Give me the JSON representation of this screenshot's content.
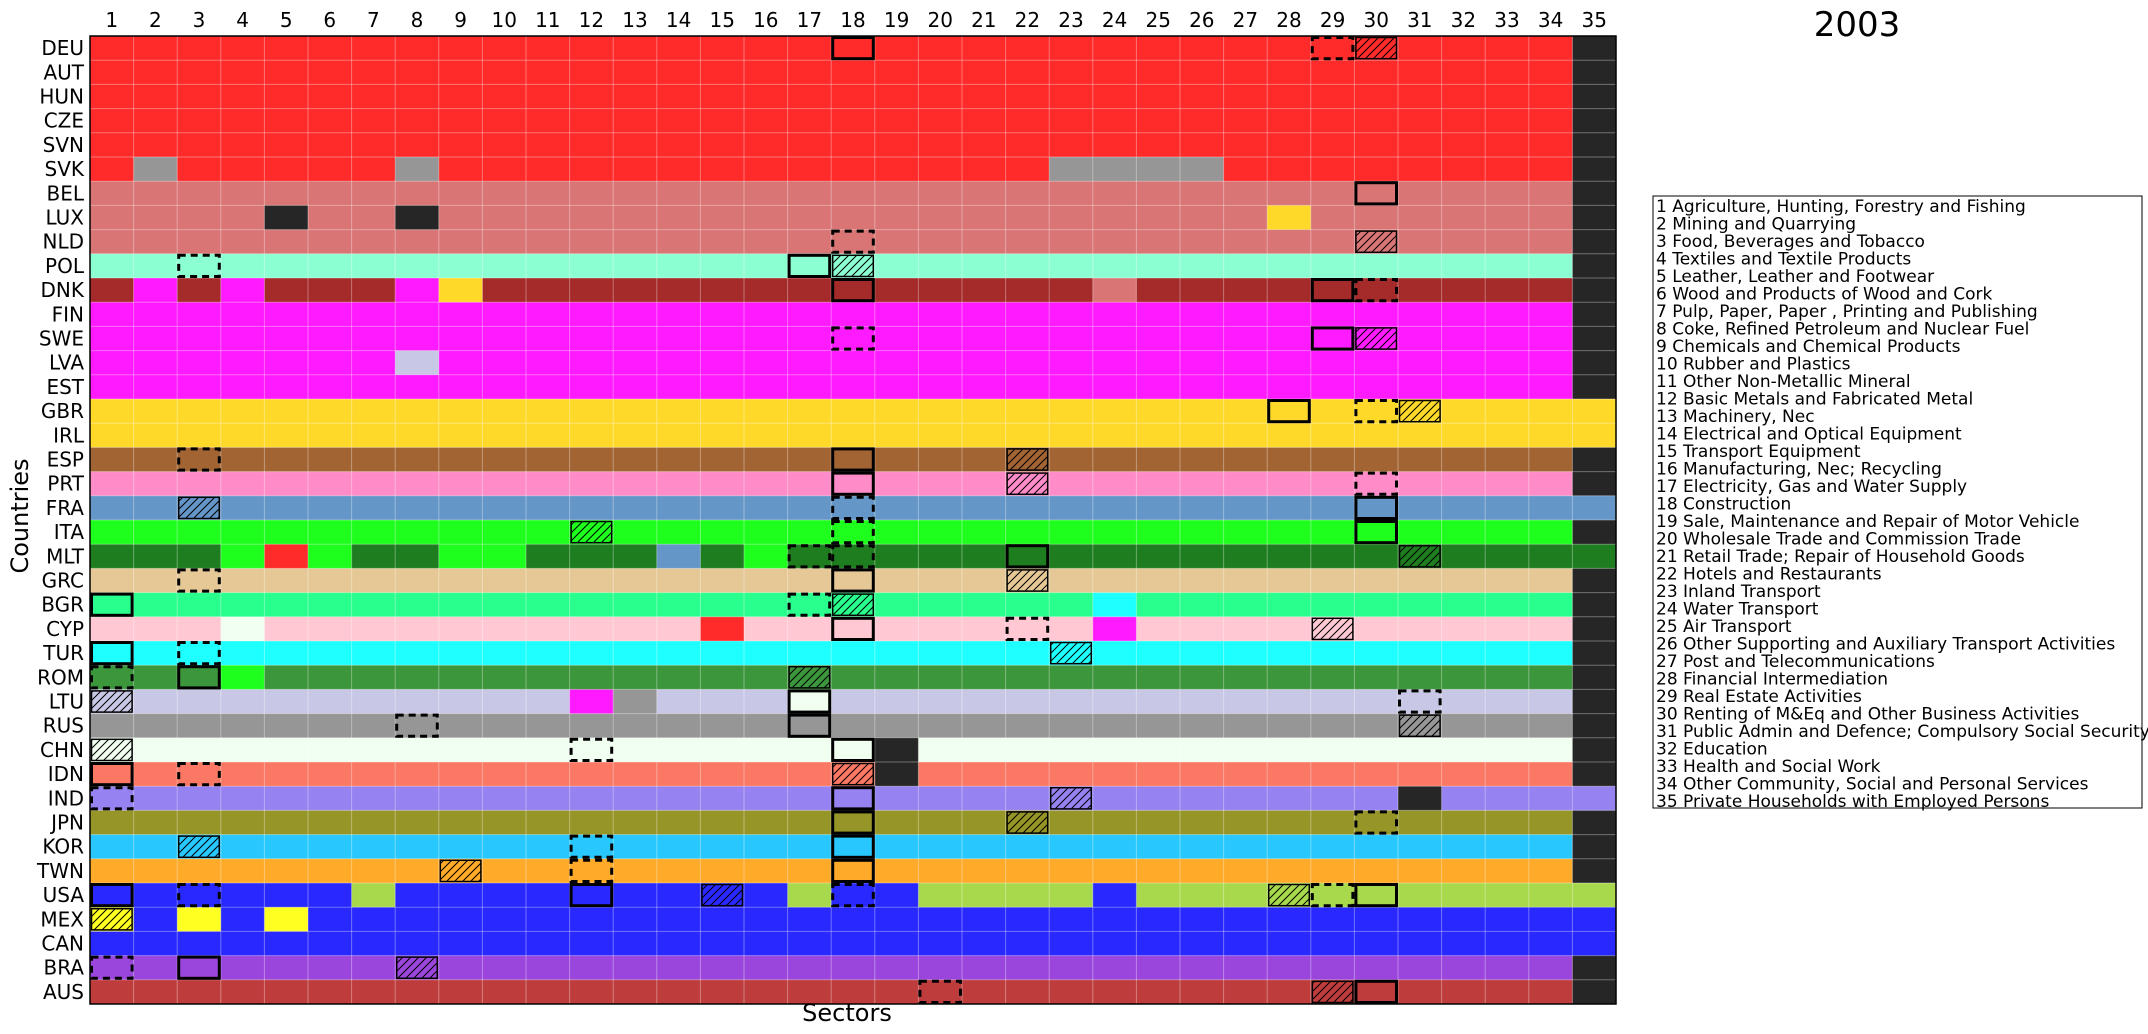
{
  "chart_data": {
    "type": "heatmap",
    "title": "2003",
    "xlabel": "Sectors",
    "ylabel": "Countries",
    "grid": true,
    "legend_position": "right",
    "x_categories": [
      "1",
      "2",
      "3",
      "4",
      "5",
      "6",
      "7",
      "8",
      "9",
      "10",
      "11",
      "12",
      "13",
      "14",
      "15",
      "16",
      "17",
      "18",
      "19",
      "20",
      "21",
      "22",
      "23",
      "24",
      "25",
      "26",
      "27",
      "28",
      "29",
      "30",
      "31",
      "32",
      "33",
      "34",
      "35"
    ],
    "countries": [
      "DEU",
      "AUT",
      "HUN",
      "CZE",
      "SVN",
      "SVK",
      "BEL",
      "LUX",
      "NLD",
      "POL",
      "DNK",
      "FIN",
      "SWE",
      "LVA",
      "EST",
      "GBR",
      "IRL",
      "ESP",
      "PRT",
      "FRA",
      "ITA",
      "MLT",
      "GRC",
      "BGR",
      "CYP",
      "TUR",
      "ROM",
      "LTU",
      "RUS",
      "CHN",
      "IDN",
      "IND",
      "JPN",
      "KOR",
      "TWN",
      "USA",
      "MEX",
      "CAN",
      "BRA",
      "AUS"
    ],
    "country_colors": {
      "DEU": "#ff2a2a",
      "AUT": "#ff2a2a",
      "HUN": "#ff2a2a",
      "CZE": "#ff2a2a",
      "SVN": "#ff2a2a",
      "SVK": "#ff2a2a",
      "BEL": "#d97575",
      "LUX": "#d97575",
      "NLD": "#d97575",
      "POL": "#8cffd2",
      "DNK": "#a52a2a",
      "FIN": "#ff1aff",
      "SWE": "#ff1aff",
      "LVA": "#ff1aff",
      "EST": "#ff1aff",
      "GBR": "#ffd92a",
      "IRL": "#ffd92a",
      "ESP": "#a26432",
      "PRT": "#ff8cc8",
      "FRA": "#6496c8",
      "ITA": "#1eff1e",
      "MLT": "#1e7d1e",
      "GRC": "#e6c896",
      "BGR": "#28ff8c",
      "CYP": "#ffc8d2",
      "TUR": "#1effff",
      "ROM": "#3c963c",
      "LTU": "#c8c8e6",
      "RUS": "#969696",
      "CHN": "#f0fff0",
      "IDN": "#fa7864",
      "IND": "#9682f0",
      "JPN": "#969628",
      "KOR": "#28c8ff",
      "TWN": "#ffaa28",
      "USA": "#2828ff",
      "MEX": "#2828ff",
      "CAN": "#2828ff",
      "BRA": "#9a46dc",
      "AUS": "#be3c3c"
    },
    "last_column_dark": [
      "DEU",
      "AUT",
      "HUN",
      "CZE",
      "SVN",
      "SVK",
      "BEL",
      "LUX",
      "NLD",
      "POL",
      "DNK",
      "FIN",
      "SWE",
      "LVA",
      "EST",
      "ESP",
      "PRT",
      "ITA",
      "GRC",
      "BGR",
      "CYP",
      "TUR",
      "ROM",
      "LTU",
      "RUS",
      "CHN",
      "IDN",
      "JPN",
      "KOR",
      "TWN",
      "BRA",
      "AUS"
    ],
    "cell_overrides": [
      {
        "country": "SVK",
        "sectors": [
          2,
          8,
          23,
          24,
          25,
          26
        ],
        "color": "RUS"
      },
      {
        "country": "LUX",
        "sectors": [
          5,
          8
        ],
        "color": "dark"
      },
      {
        "country": "LUX",
        "sectors": [
          28
        ],
        "color": "GBR"
      },
      {
        "country": "DNK",
        "sectors": [
          2,
          4,
          8
        ],
        "color": "FIN"
      },
      {
        "country": "DNK",
        "sectors": [
          9
        ],
        "color": "GBR"
      },
      {
        "country": "DNK",
        "sectors": [
          24
        ],
        "color": "BEL"
      },
      {
        "country": "LVA",
        "sectors": [
          8
        ],
        "color": "LTU"
      },
      {
        "country": "FRA",
        "sectors": [
          35
        ],
        "color": "FRA"
      },
      {
        "country": "ITA",
        "sectors": [
          30
        ],
        "color": "ITA"
      },
      {
        "country": "MLT",
        "sectors": [
          4,
          6,
          9,
          10,
          16
        ],
        "color": "ITA"
      },
      {
        "country": "MLT",
        "sectors": [
          5
        ],
        "color": "DEU"
      },
      {
        "country": "MLT",
        "sectors": [
          14
        ],
        "color": "FRA"
      },
      {
        "country": "MLT",
        "sectors": [
          35
        ],
        "color": "MLT"
      },
      {
        "country": "GBR",
        "sectors": [
          35
        ],
        "color": "GBR"
      },
      {
        "country": "IRL",
        "sectors": [
          35
        ],
        "color": "IRL"
      },
      {
        "country": "BGR",
        "sectors": [
          24
        ],
        "color": "TUR"
      },
      {
        "country": "CYP",
        "sectors": [
          4
        ],
        "color": "CHN"
      },
      {
        "country": "CYP",
        "sectors": [
          15
        ],
        "color": "DEU"
      },
      {
        "country": "CYP",
        "sectors": [
          24
        ],
        "color": "FIN"
      },
      {
        "country": "ROM",
        "sectors": [
          4
        ],
        "color": "ITA"
      },
      {
        "country": "LTU",
        "sectors": [
          12
        ],
        "color": "FIN"
      },
      {
        "country": "LTU",
        "sectors": [
          13
        ],
        "color": "RUS"
      },
      {
        "country": "LTU",
        "sectors": [
          17
        ],
        "color": "CHN"
      },
      {
        "country": "CHN",
        "sectors": [
          19
        ],
        "color": "dark"
      },
      {
        "country": "IDN",
        "sectors": [
          18
        ],
        "color": "IDN"
      },
      {
        "country": "IDN",
        "sectors": [
          19
        ],
        "color": "dark"
      },
      {
        "country": "IND",
        "sectors": [
          31
        ],
        "color": "dark"
      },
      {
        "country": "IND",
        "sectors": [
          35
        ],
        "color": "IND"
      },
      {
        "country": "USA",
        "sectors": [
          7,
          17,
          20,
          21,
          22,
          23,
          25,
          26,
          27,
          28,
          29,
          30,
          31,
          32,
          33,
          34,
          35
        ],
        "color": "lime"
      },
      {
        "country": "MEX",
        "sectors": [
          1,
          3,
          5
        ],
        "color": "yellow"
      },
      {
        "country": "MEX",
        "sectors": [
          35
        ],
        "color": "MEX"
      },
      {
        "country": "CAN",
        "sectors": [
          35
        ],
        "color": "CAN"
      }
    ],
    "extra_colors": {
      "dark": "#262626",
      "lime": "#a8d94c",
      "yellow": "#ffff22"
    },
    "highlight_boxes": [
      {
        "country": "DEU",
        "sector": 18,
        "style": "solid"
      },
      {
        "country": "DEU",
        "sector": 29,
        "style": "dashed"
      },
      {
        "country": "DEU",
        "sector": 30,
        "style": "hatched"
      },
      {
        "country": "BEL",
        "sector": 30,
        "style": "solid"
      },
      {
        "country": "NLD",
        "sector": 18,
        "style": "dashed"
      },
      {
        "country": "NLD",
        "sector": 30,
        "style": "hatched"
      },
      {
        "country": "POL",
        "sector": 3,
        "style": "dashed"
      },
      {
        "country": "POL",
        "sector": 17,
        "style": "solid"
      },
      {
        "country": "POL",
        "sector": 18,
        "style": "hatched"
      },
      {
        "country": "DNK",
        "sector": 18,
        "style": "solid"
      },
      {
        "country": "DNK",
        "sector": 29,
        "style": "solid"
      },
      {
        "country": "DNK",
        "sector": 30,
        "style": "dashed"
      },
      {
        "country": "SWE",
        "sector": 18,
        "style": "dashed"
      },
      {
        "country": "SWE",
        "sector": 29,
        "style": "solid"
      },
      {
        "country": "SWE",
        "sector": 30,
        "style": "hatched"
      },
      {
        "country": "GBR",
        "sector": 28,
        "style": "solid"
      },
      {
        "country": "GBR",
        "sector": 30,
        "style": "dashed"
      },
      {
        "country": "GBR",
        "sector": 31,
        "style": "hatched"
      },
      {
        "country": "ESP",
        "sector": 3,
        "style": "dashed"
      },
      {
        "country": "ESP",
        "sector": 18,
        "style": "solid"
      },
      {
        "country": "ESP",
        "sector": 22,
        "style": "hatched"
      },
      {
        "country": "PRT",
        "sector": 18,
        "style": "solid"
      },
      {
        "country": "PRT",
        "sector": 22,
        "style": "hatched"
      },
      {
        "country": "PRT",
        "sector": 30,
        "style": "dashed"
      },
      {
        "country": "FRA",
        "sector": 3,
        "style": "hatched"
      },
      {
        "country": "FRA",
        "sector": 18,
        "style": "dashed"
      },
      {
        "country": "FRA",
        "sector": 30,
        "style": "solid"
      },
      {
        "country": "ITA",
        "sector": 12,
        "style": "hatched"
      },
      {
        "country": "ITA",
        "sector": 18,
        "style": "dashed"
      },
      {
        "country": "ITA",
        "sector": 30,
        "style": "solid"
      },
      {
        "country": "MLT",
        "sector": 17,
        "style": "dashed"
      },
      {
        "country": "MLT",
        "sector": 18,
        "style": "dashed"
      },
      {
        "country": "MLT",
        "sector": 22,
        "style": "solid"
      },
      {
        "country": "MLT",
        "sector": 31,
        "style": "hatched"
      },
      {
        "country": "GRC",
        "sector": 3,
        "style": "dashed"
      },
      {
        "country": "GRC",
        "sector": 18,
        "style": "solid"
      },
      {
        "country": "GRC",
        "sector": 22,
        "style": "hatched"
      },
      {
        "country": "BGR",
        "sector": 1,
        "style": "solid"
      },
      {
        "country": "BGR",
        "sector": 17,
        "style": "dashed"
      },
      {
        "country": "BGR",
        "sector": 18,
        "style": "hatched"
      },
      {
        "country": "CYP",
        "sector": 18,
        "style": "solid"
      },
      {
        "country": "CYP",
        "sector": 22,
        "style": "dashed"
      },
      {
        "country": "CYP",
        "sector": 29,
        "style": "hatched"
      },
      {
        "country": "TUR",
        "sector": 1,
        "style": "solid"
      },
      {
        "country": "TUR",
        "sector": 3,
        "style": "dashed"
      },
      {
        "country": "TUR",
        "sector": 23,
        "style": "hatched"
      },
      {
        "country": "ROM",
        "sector": 1,
        "style": "dashed"
      },
      {
        "country": "ROM",
        "sector": 3,
        "style": "solid"
      },
      {
        "country": "ROM",
        "sector": 17,
        "style": "hatched"
      },
      {
        "country": "LTU",
        "sector": 1,
        "style": "hatched"
      },
      {
        "country": "LTU",
        "sector": 17,
        "style": "solid"
      },
      {
        "country": "LTU",
        "sector": 31,
        "style": "dashed"
      },
      {
        "country": "RUS",
        "sector": 8,
        "style": "dashed"
      },
      {
        "country": "RUS",
        "sector": 17,
        "style": "solid"
      },
      {
        "country": "RUS",
        "sector": 31,
        "style": "hatched"
      },
      {
        "country": "CHN",
        "sector": 1,
        "style": "hatched"
      },
      {
        "country": "CHN",
        "sector": 12,
        "style": "dashed"
      },
      {
        "country": "CHN",
        "sector": 18,
        "style": "solid"
      },
      {
        "country": "IDN",
        "sector": 1,
        "style": "solid"
      },
      {
        "country": "IDN",
        "sector": 3,
        "style": "dashed"
      },
      {
        "country": "IDN",
        "sector": 18,
        "style": "hatched"
      },
      {
        "country": "IND",
        "sector": 1,
        "style": "dashed"
      },
      {
        "country": "IND",
        "sector": 18,
        "style": "solid"
      },
      {
        "country": "IND",
        "sector": 23,
        "style": "hatched"
      },
      {
        "country": "JPN",
        "sector": 18,
        "style": "solid"
      },
      {
        "country": "JPN",
        "sector": 22,
        "style": "hatched"
      },
      {
        "country": "JPN",
        "sector": 30,
        "style": "dashed"
      },
      {
        "country": "KOR",
        "sector": 3,
        "style": "hatched"
      },
      {
        "country": "KOR",
        "sector": 12,
        "style": "dashed"
      },
      {
        "country": "KOR",
        "sector": 18,
        "style": "solid"
      },
      {
        "country": "TWN",
        "sector": 9,
        "style": "hatched"
      },
      {
        "country": "TWN",
        "sector": 12,
        "style": "dashed"
      },
      {
        "country": "TWN",
        "sector": 18,
        "style": "solid"
      },
      {
        "country": "USA",
        "sector": 1,
        "style": "solid"
      },
      {
        "country": "USA",
        "sector": 3,
        "style": "dashed"
      },
      {
        "country": "USA",
        "sector": 12,
        "style": "solid"
      },
      {
        "country": "USA",
        "sector": 15,
        "style": "hatched"
      },
      {
        "country": "USA",
        "sector": 18,
        "style": "dashed"
      },
      {
        "country": "USA",
        "sector": 28,
        "style": "hatched"
      },
      {
        "country": "USA",
        "sector": 29,
        "style": "dashed"
      },
      {
        "country": "USA",
        "sector": 30,
        "style": "solid"
      },
      {
        "country": "MEX",
        "sector": 1,
        "style": "hatched"
      },
      {
        "country": "BRA",
        "sector": 1,
        "style": "dashed"
      },
      {
        "country": "BRA",
        "sector": 3,
        "style": "solid"
      },
      {
        "country": "BRA",
        "sector": 8,
        "style": "hatched"
      },
      {
        "country": "AUS",
        "sector": 20,
        "style": "dashed"
      },
      {
        "country": "AUS",
        "sector": 29,
        "style": "hatched"
      },
      {
        "country": "AUS",
        "sector": 30,
        "style": "solid"
      }
    ],
    "legend_entries": [
      "1 Agriculture, Hunting, Forestry and Fishing",
      "2 Mining and Quarrying",
      "3 Food, Beverages and Tobacco",
      "4 Textiles and Textile Products",
      "5 Leather, Leather and Footwear",
      "6 Wood and Products of Wood and Cork",
      "7 Pulp, Paper, Paper , Printing and Publishing",
      "8 Coke, Refined Petroleum and Nuclear Fuel",
      "9 Chemicals and Chemical Products",
      "10 Rubber and Plastics",
      "11 Other Non-Metallic Mineral",
      "12 Basic Metals and Fabricated Metal",
      "13 Machinery, Nec",
      "14 Electrical and Optical Equipment",
      "15 Transport Equipment",
      "16 Manufacturing, Nec; Recycling",
      "17 Electricity, Gas and Water Supply",
      "18 Construction",
      "19 Sale, Maintenance and Repair of Motor Vehicle",
      "20 Wholesale Trade and Commission Trade",
      "21 Retail Trade; Repair of Household Goods",
      "22 Hotels and Restaurants",
      "23 Inland Transport",
      "24 Water Transport",
      "25 Air Transport",
      "26 Other Supporting and Auxiliary Transport Activities",
      "27 Post and Telecommunications",
      "28 Financial Intermediation",
      "29 Real Estate Activities",
      "30 Renting of M&Eq and Other Business Activities",
      "31 Public Admin and Defence; Compulsory Social Security",
      "32 Education",
      "33 Health and Social Work",
      "34 Other Community, Social and Personal Services",
      "35 Private Households with Employed Persons"
    ]
  }
}
